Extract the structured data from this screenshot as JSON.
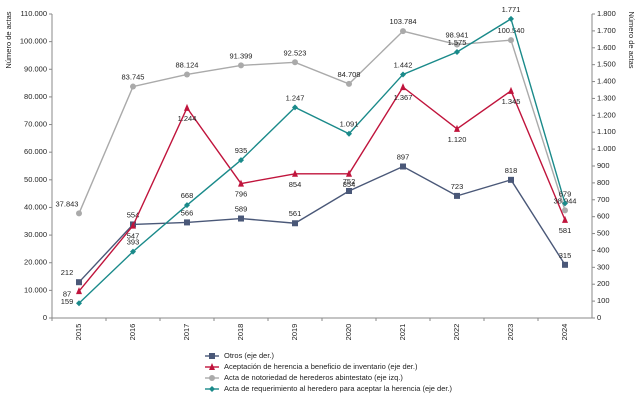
{
  "chart_data": {
    "type": "line",
    "y_label": "Número de actas",
    "y2_label": "Número de actas",
    "categories": [
      "2015",
      "2016",
      "2017",
      "2018",
      "2019",
      "2020",
      "2021",
      "2022",
      "2023",
      "2024"
    ],
    "ylim": [
      0,
      110000
    ],
    "yticks": [
      0,
      {
        "value": 10000,
        "label": "10.000"
      },
      {
        "value": 20000,
        "label": "20.000"
      },
      {
        "value": 30000,
        "label": "30.000"
      },
      {
        "value": 40000,
        "label": "40.000"
      },
      {
        "value": 50000,
        "label": "50.000"
      },
      {
        "value": 60000,
        "label": "60.000"
      },
      {
        "value": 70000,
        "label": "70.000"
      },
      {
        "value": 80000,
        "label": "80.000"
      },
      {
        "value": 90000,
        "label": "90.000"
      },
      {
        "value": 100000,
        "label": "100.000"
      },
      {
        "value": 110000,
        "label": "110.000"
      }
    ],
    "y2lim": [
      0,
      1800
    ],
    "y2ticks": [
      0,
      100,
      200,
      300,
      400,
      500,
      600,
      700,
      800,
      900,
      {
        "value": 1000,
        "label": "1.000"
      },
      {
        "value": 1100,
        "label": "1.100"
      },
      {
        "value": 1200,
        "label": "1.200"
      },
      {
        "value": 1300,
        "label": "1.300"
      },
      {
        "value": 1400,
        "label": "1.400"
      },
      {
        "value": 1500,
        "label": "1.500"
      },
      {
        "value": 1600,
        "label": "1.600"
      },
      {
        "value": 1700,
        "label": "1.700"
      },
      {
        "value": 1800,
        "label": "1.800"
      }
    ],
    "series": [
      {
        "name": "Otros (eje der.)",
        "color": "#4a5878",
        "axis": "y2",
        "marker": "square",
        "values": [
          212,
          554,
          566,
          589,
          561,
          752,
          897,
          723,
          818,
          315
        ]
      },
      {
        "name": "Aceptación de herencia a beneficio de inventario (eje der.)",
        "color": "#c0143c",
        "axis": "y2",
        "marker": "triangle",
        "values": [
          159,
          547,
          1244,
          796,
          854,
          854,
          1367,
          1120,
          1345,
          581
        ],
        "value_labels": [
          "159",
          "547",
          "1.244",
          "796",
          "854",
          "854",
          "1.367",
          "1.120",
          "1.345",
          "581"
        ]
      },
      {
        "name": "Acta de notoriedad de herederos abintestato (eje izq.)",
        "color": "#aaaaaa",
        "axis": "y",
        "marker": "circle",
        "values": [
          37843,
          83745,
          88124,
          91399,
          92523,
          84708,
          103784,
          98941,
          100540,
          38944
        ],
        "value_labels": [
          "37.843",
          "83.745",
          "88.124",
          "91.399",
          "92.523",
          "84.708",
          "103.784",
          "98.941",
          "100.540",
          "38.944"
        ]
      },
      {
        "name": "Acta de requerimiento al heredero para aceptar la herencia (eje der.)",
        "color": "#1a8a8a",
        "axis": "y2",
        "marker": "diamond",
        "values": [
          87,
          393,
          668,
          935,
          1247,
          1091,
          1442,
          1575,
          1771,
          679
        ],
        "value_labels": [
          "87",
          "393",
          "668",
          "935",
          "1.247",
          "1.091",
          "1.442",
          "1.575",
          "1.771",
          "679"
        ]
      }
    ]
  }
}
